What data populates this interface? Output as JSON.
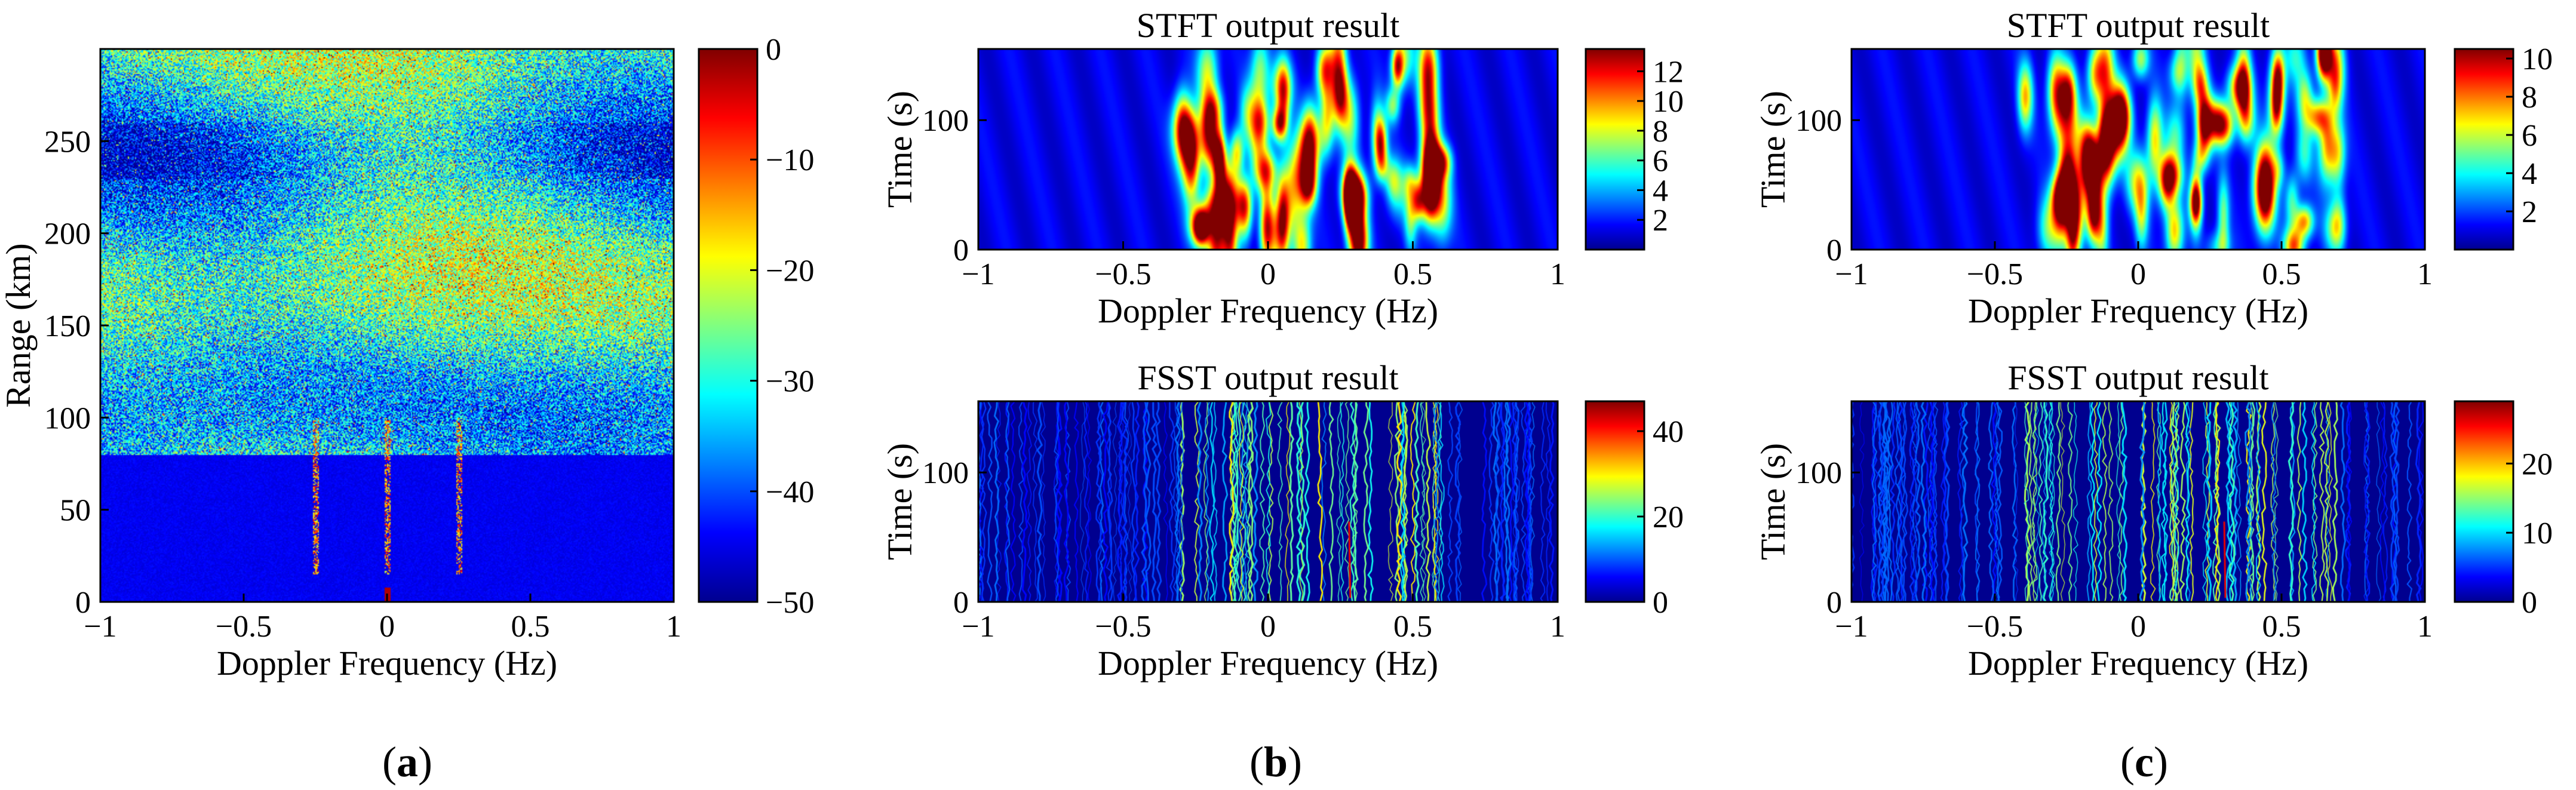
{
  "colors": {
    "jet": [
      "#00008f",
      "#0000ff",
      "#0080ff",
      "#00ffff",
      "#80ff80",
      "#ffff00",
      "#ff8000",
      "#ff0000",
      "#800000"
    ],
    "background_low": "#0a1a9a"
  },
  "chart_data": [
    {
      "id": "a",
      "type": "heatmap",
      "title": "",
      "panel_label": "a",
      "xlabel": "Doppler Frequency (Hz)",
      "ylabel": "Range (km)",
      "xlim": [
        -1,
        1
      ],
      "ylim": [
        0,
        300
      ],
      "xticks": [
        -1,
        -0.5,
        0,
        0.5,
        1
      ],
      "xtick_labels": [
        "−1",
        "−0.5",
        "0",
        "0.5",
        "1"
      ],
      "yticks": [
        0,
        50,
        100,
        150,
        200,
        250
      ],
      "ytick_labels": [
        "0",
        "50",
        "100",
        "150",
        "200",
        "250"
      ],
      "colorbar": {
        "range": [
          -50,
          0
        ],
        "ticks": [
          0,
          -10,
          -20,
          -30,
          -40,
          -50
        ],
        "tick_labels": [
          "0",
          "−10",
          "−20",
          "−30",
          "−40",
          "−50"
        ]
      },
      "features": {
        "clutter_band_km": [
          85,
          300
        ],
        "noise_floor_below_km": 80,
        "bragg_lines_hz": [
          -0.25,
          0,
          0.25
        ],
        "bragg_line_span_km": [
          15,
          100
        ]
      }
    },
    {
      "id": "b-stft",
      "type": "heatmap",
      "title": "STFT output result",
      "panel_label": "",
      "xlabel": "Doppler Frequency (Hz)",
      "ylabel": "Time (s)",
      "xlim": [
        -1,
        1
      ],
      "ylim": [
        0,
        155
      ],
      "xticks": [
        -1,
        -0.5,
        0,
        0.5,
        1
      ],
      "xtick_labels": [
        "−1",
        "−0.5",
        "0",
        "0.5",
        "1"
      ],
      "yticks": [
        0,
        100
      ],
      "ytick_labels": [
        "0",
        "100"
      ],
      "colorbar": {
        "range": [
          0,
          13.5
        ],
        "ticks": [
          2,
          4,
          6,
          8,
          10,
          12
        ],
        "tick_labels": [
          "2",
          "4",
          "6",
          "8",
          "10",
          "12"
        ]
      },
      "features": {
        "peak_hz": 0.28,
        "peak_value": 13,
        "activity_hz": [
          -0.3,
          0.6
        ]
      }
    },
    {
      "id": "b-fsst",
      "type": "heatmap",
      "title": "FSST output result",
      "panel_label": "b",
      "xlabel": "Doppler Frequency (Hz)",
      "ylabel": "Time (s)",
      "xlim": [
        -1,
        1
      ],
      "ylim": [
        0,
        155
      ],
      "xticks": [
        -1,
        -0.5,
        0,
        0.5,
        1
      ],
      "xtick_labels": [
        "−1",
        "−0.5",
        "0",
        "0.5",
        "1"
      ],
      "yticks": [
        0,
        100
      ],
      "ytick_labels": [
        "0",
        "100"
      ],
      "colorbar": {
        "range": [
          0,
          47
        ],
        "ticks": [
          0,
          20,
          40
        ],
        "tick_labels": [
          "0",
          "20",
          "40"
        ]
      },
      "features": {
        "peak_hz": 0.28,
        "peak_value": 45,
        "activity_hz": [
          -0.3,
          0.6
        ]
      }
    },
    {
      "id": "c-stft",
      "type": "heatmap",
      "title": "STFT output result",
      "panel_label": "",
      "xlabel": "Doppler Frequency (Hz)",
      "ylabel": "Time (s)",
      "xlim": [
        -1,
        1
      ],
      "ylim": [
        0,
        155
      ],
      "xticks": [
        -1,
        -0.5,
        0,
        0.5,
        1
      ],
      "xtick_labels": [
        "−1",
        "−0.5",
        "0",
        "0.5",
        "1"
      ],
      "yticks": [
        0,
        100
      ],
      "ytick_labels": [
        "0",
        "100"
      ],
      "colorbar": {
        "range": [
          0,
          10.5
        ],
        "ticks": [
          2,
          4,
          6,
          8,
          10
        ],
        "tick_labels": [
          "2",
          "4",
          "6",
          "8",
          "10"
        ]
      },
      "features": {
        "peak_hz": 0.2,
        "peak_value": 10,
        "activity_hz": [
          -0.4,
          0.7
        ]
      }
    },
    {
      "id": "c-fsst",
      "type": "heatmap",
      "title": "FSST output result",
      "panel_label": "c",
      "xlabel": "Doppler Frequency (Hz)",
      "ylabel": "Time (s)",
      "xlim": [
        -1,
        1
      ],
      "ylim": [
        0,
        155
      ],
      "xticks": [
        -1,
        -0.5,
        0,
        0.5,
        1
      ],
      "xtick_labels": [
        "−1",
        "−0.5",
        "0",
        "0.5",
        "1"
      ],
      "yticks": [
        0,
        100
      ],
      "ytick_labels": [
        "0",
        "100"
      ],
      "colorbar": {
        "range": [
          0,
          29
        ],
        "ticks": [
          0,
          10,
          20
        ],
        "tick_labels": [
          "0",
          "10",
          "20"
        ]
      },
      "features": {
        "peak_hz": 0.3,
        "peak_value": 28,
        "activity_hz": [
          -0.4,
          0.7
        ]
      }
    }
  ],
  "panel_labels": {
    "a": "a",
    "b": "b",
    "c": "c"
  }
}
